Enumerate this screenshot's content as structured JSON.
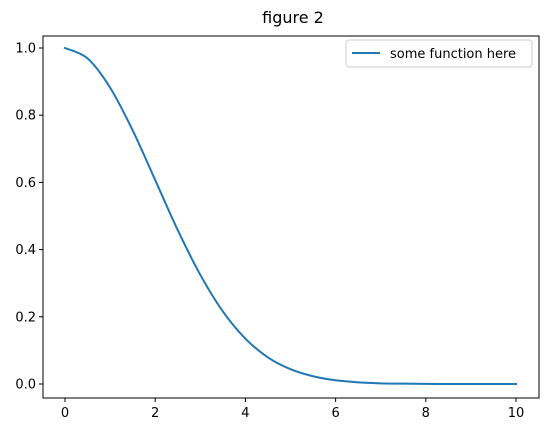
{
  "chart_data": {
    "type": "line",
    "title": "figure 2",
    "xlabel": "",
    "ylabel": "",
    "xlim": [
      0,
      10
    ],
    "ylim": [
      0,
      1
    ],
    "xticks": [
      0,
      2,
      4,
      6,
      8,
      10
    ],
    "xtick_labels": [
      "0",
      "2",
      "4",
      "6",
      "8",
      "10"
    ],
    "yticks": [
      0,
      0.2,
      0.4,
      0.6,
      0.8,
      1.0
    ],
    "ytick_labels": [
      "0.0",
      "0.2",
      "0.4",
      "0.6",
      "0.8",
      "1.0"
    ],
    "grid": false,
    "legend_position": "top-right",
    "series": [
      {
        "name": "some function here",
        "color": "#1f77b4",
        "x": [
          0,
          0.5,
          1,
          1.5,
          2,
          2.5,
          3,
          3.5,
          4,
          4.5,
          5,
          5.5,
          6,
          6.5,
          7,
          7.5,
          8,
          8.5,
          9,
          9.5,
          10
        ],
        "y": [
          1.0,
          0.969,
          0.882,
          0.755,
          0.607,
          0.458,
          0.325,
          0.216,
          0.135,
          0.079,
          0.044,
          0.023,
          0.011,
          0.005,
          0.002,
          0.001,
          0.0003,
          0.0001,
          0.0,
          0.0,
          0.0
        ]
      }
    ]
  }
}
